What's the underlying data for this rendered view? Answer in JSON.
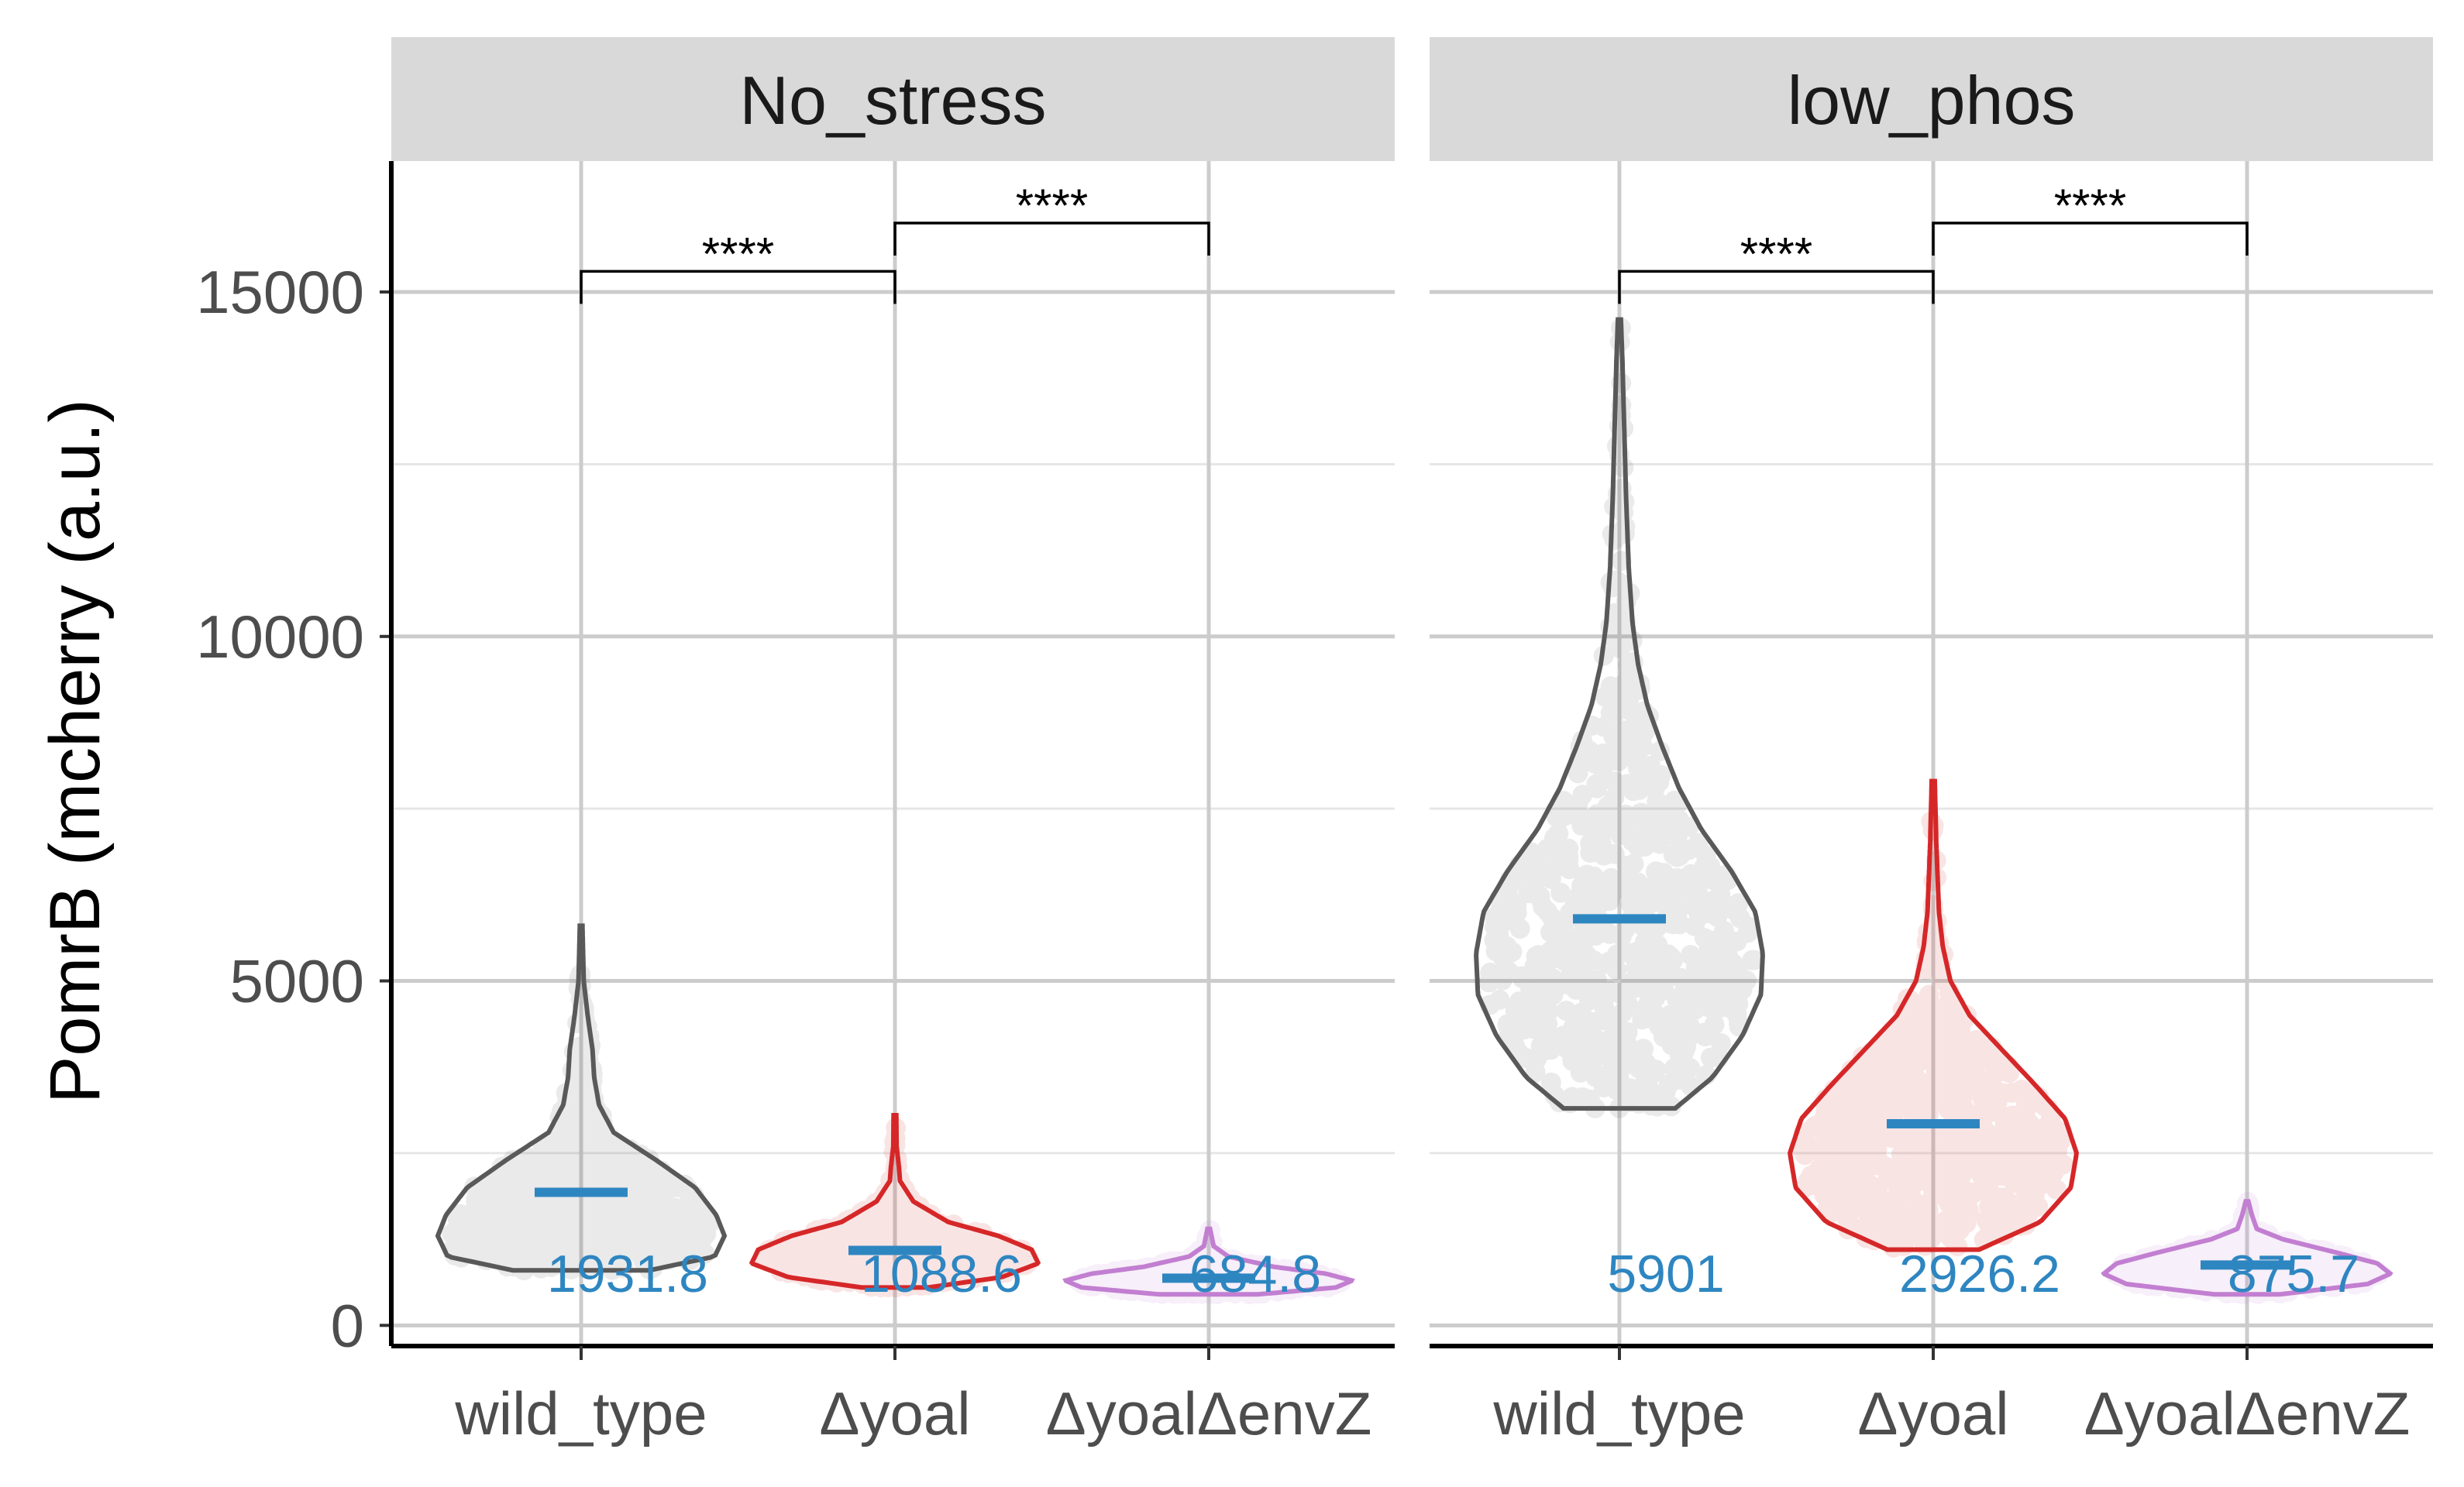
{
  "chart_data": {
    "type": "violin",
    "ylabel": "PomrB (mcherry (a.u.)",
    "ylim": [
      -300,
      16900
    ],
    "y_ticks": [
      0,
      5000,
      10000,
      15000
    ],
    "y_tick_labels": [
      "0",
      "5000",
      "10000",
      "15000"
    ],
    "grid": true,
    "categories": [
      "wild_type",
      "Δyoal",
      "ΔyoalΔenvZ"
    ],
    "colors": {
      "wild_type": "#595959",
      "Δyoal": "#d62728",
      "ΔyoalΔenvZ": "#c27fd1",
      "mean": "#2e86c1",
      "strip_bg": "#d9d9d9",
      "grid": "#cccccc"
    },
    "facets": [
      {
        "name": "No_stress",
        "groups": [
          {
            "category": "wild_type",
            "min": 800,
            "max": 5800,
            "mean": 1931.8,
            "mean_label": "1931.8",
            "profile": [
              [
                800,
                420
              ],
              [
                1000,
                820
              ],
              [
                1300,
                880
              ],
              [
                1600,
                830
              ],
              [
                2000,
                700
              ],
              [
                2400,
                460
              ],
              [
                2800,
                200
              ],
              [
                3200,
                110
              ],
              [
                3600,
                80
              ],
              [
                4000,
                70
              ],
              [
                4500,
                40
              ],
              [
                5000,
                16
              ],
              [
                5800,
                8
              ]
            ]
          },
          {
            "category": "Δyoal",
            "min": 550,
            "max": 3050,
            "mean": 1088.6,
            "mean_label": "1088.6",
            "profile": [
              [
                550,
                200
              ],
              [
                700,
                640
              ],
              [
                900,
                860
              ],
              [
                1100,
                820
              ],
              [
                1300,
                620
              ],
              [
                1500,
                320
              ],
              [
                1800,
                110
              ],
              [
                2100,
                30
              ],
              [
                2300,
                24
              ],
              [
                2600,
                10
              ],
              [
                3050,
                8
              ]
            ]
          },
          {
            "category": "ΔyoalΔenvZ",
            "min": 450,
            "max": 1400,
            "mean": 684.8,
            "mean_label": "684.8",
            "profile": [
              [
                450,
                300
              ],
              [
                550,
                780
              ],
              [
                650,
                880
              ],
              [
                750,
                720
              ],
              [
                850,
                400
              ],
              [
                1000,
                120
              ],
              [
                1150,
                30
              ],
              [
                1400,
                8
              ]
            ]
          }
        ],
        "comparisons": [
          {
            "from": "wild_type",
            "to": "Δyoal",
            "y": 15300,
            "label": "****"
          },
          {
            "from": "Δyoal",
            "to": "ΔyoalΔenvZ",
            "y": 16000,
            "label": "****"
          }
        ]
      },
      {
        "name": "low_phos",
        "groups": [
          {
            "category": "wild_type",
            "min": 3150,
            "max": 14600,
            "mean": 5901,
            "mean_label": "5901",
            "profile": [
              [
                3150,
                300
              ],
              [
                3600,
                500
              ],
              [
                4200,
                660
              ],
              [
                4800,
                760
              ],
              [
                5400,
                770
              ],
              [
                6000,
                730
              ],
              [
                6600,
                600
              ],
              [
                7200,
                440
              ],
              [
                7800,
                320
              ],
              [
                8400,
                230
              ],
              [
                9000,
                150
              ],
              [
                9600,
                100
              ],
              [
                10200,
                70
              ],
              [
                11000,
                50
              ],
              [
                12000,
                36
              ],
              [
                13000,
                26
              ],
              [
                14000,
                16
              ],
              [
                14600,
                8
              ]
            ]
          },
          {
            "category": "Δyoal",
            "min": 1100,
            "max": 7900,
            "mean": 2926.2,
            "mean_label": "2926.2",
            "profile": [
              [
                1100,
                240
              ],
              [
                1500,
                560
              ],
              [
                2000,
                720
              ],
              [
                2500,
                750
              ],
              [
                3000,
                690
              ],
              [
                3500,
                530
              ],
              [
                4000,
                360
              ],
              [
                4500,
                190
              ],
              [
                5000,
                90
              ],
              [
                5500,
                50
              ],
              [
                6000,
                30
              ],
              [
                7000,
                16
              ],
              [
                7900,
                8
              ]
            ]
          },
          {
            "category": "ΔyoalΔenvZ",
            "min": 450,
            "max": 1800,
            "mean": 875.7,
            "mean_label": "875.7",
            "profile": [
              [
                450,
                200
              ],
              [
                600,
                740
              ],
              [
                750,
                880
              ],
              [
                900,
                800
              ],
              [
                1050,
                560
              ],
              [
                1250,
                220
              ],
              [
                1400,
                60
              ],
              [
                1600,
                30
              ],
              [
                1800,
                8
              ]
            ]
          }
        ],
        "comparisons": [
          {
            "from": "wild_type",
            "to": "Δyoal",
            "y": 15300,
            "label": "****"
          },
          {
            "from": "Δyoal",
            "to": "ΔyoalΔenvZ",
            "y": 16000,
            "label": "****"
          }
        ]
      }
    ]
  }
}
